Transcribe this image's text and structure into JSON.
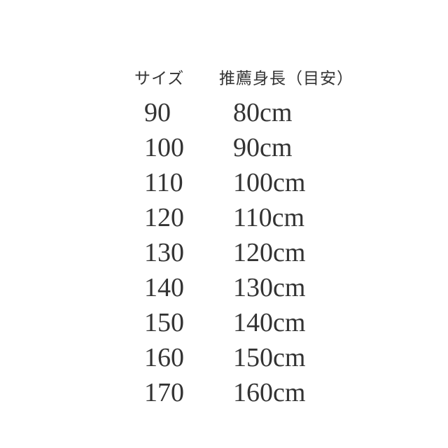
{
  "page": {
    "background_color": "#ffffff",
    "text_color": "#333333"
  },
  "table": {
    "headers": {
      "size": "サイズ",
      "height": "推薦身長（目安）"
    },
    "rows": [
      {
        "size": "90",
        "height": "80cm"
      },
      {
        "size": "100",
        "height": "90cm"
      },
      {
        "size": "110",
        "height": "100cm"
      },
      {
        "size": "120",
        "height": "110cm"
      },
      {
        "size": "130",
        "height": "120cm"
      },
      {
        "size": "140",
        "height": "130cm"
      },
      {
        "size": "150",
        "height": "140cm"
      },
      {
        "size": "160",
        "height": "150cm"
      },
      {
        "size": "170",
        "height": "160cm"
      }
    ]
  },
  "chart_data": {
    "type": "table",
    "title": "",
    "columns": [
      "サイズ",
      "推薦身長（目安）"
    ],
    "rows": [
      [
        "90",
        "80cm"
      ],
      [
        "100",
        "90cm"
      ],
      [
        "110",
        "100cm"
      ],
      [
        "120",
        "110cm"
      ],
      [
        "130",
        "120cm"
      ],
      [
        "140",
        "130cm"
      ],
      [
        "150",
        "140cm"
      ],
      [
        "160",
        "150cm"
      ],
      [
        "170",
        "160cm"
      ]
    ]
  }
}
